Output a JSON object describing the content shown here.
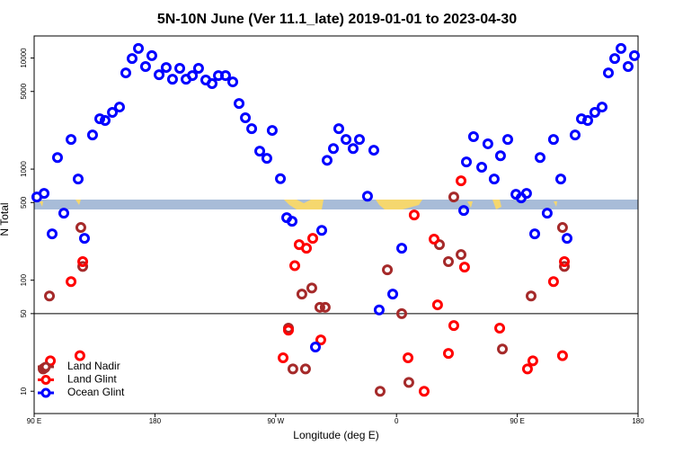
{
  "chart_data": {
    "type": "scatter",
    "title": "5N-10N June (Ver 11.1_late)   2019-01-01 to 2023-04-30",
    "x_label": "Longitude (deg E)",
    "y_label": "N Total",
    "xlim": [
      90,
      540
    ],
    "xticks": [
      {
        "value": 90,
        "label": "90 E"
      },
      {
        "value": 180,
        "label": "180"
      },
      {
        "value": 270,
        "label": "90 W"
      },
      {
        "value": 360,
        "label": "0"
      },
      {
        "value": 450,
        "label": "90 E"
      },
      {
        "value": 540,
        "label": "180"
      }
    ],
    "ylim": [
      6.3,
      15800
    ],
    "yscale": "log",
    "yticks": [
      10,
      50,
      100,
      500,
      1000,
      5000,
      10000
    ],
    "hline": 50,
    "legend": "lower left",
    "series": [
      {
        "name": "Land Nadir",
        "color": "#a52a2a",
        "x": [
          96.7,
          98,
          101.4,
          124.8,
          126.2,
          279.5,
          289.5,
          296.9,
          302.9,
          306.9,
          282.8,
          292.2,
          347.8,
          353.2,
          363.9,
          369.2,
          392.0,
          398.7,
          402.7,
          408.1,
          438.9,
          460.3,
          483.7,
          485.1
        ],
        "values": [
          15.9,
          16.3,
          72,
          298,
          133,
          37,
          75,
          85,
          57,
          57,
          15.9,
          15.9,
          10,
          124,
          50,
          12,
          209,
          147,
          561,
          170,
          24,
          72,
          298,
          133
        ]
      },
      {
        "name": "Land Glint",
        "color": "#ff0000",
        "x": [
          117.5,
          126.2,
          102.1,
          124.1,
          284.2,
          287.5,
          292.9,
          297.6,
          279.5,
          275.5,
          303.6,
          373.2,
          368.6,
          380.6,
          388.0,
          390.6,
          398.7,
          402.7,
          408.1,
          410.7,
          436.9,
          457.6,
          461.6,
          477.0,
          485.1,
          483.7
        ],
        "values": [
          97,
          147,
          18.8,
          20.9,
          135,
          209,
          194,
          238,
          35.5,
          20,
          29,
          386,
          20,
          10,
          234,
          60,
          21.9,
          39,
          785,
          131,
          37,
          15.9,
          18.8,
          97,
          147,
          20.9
        ]
      },
      {
        "name": "Ocean Glint",
        "color": "#0000ff",
        "x": [
          92.0,
          97.4,
          103.4,
          107.4,
          112.1,
          117.5,
          122.8,
          127.5,
          133.5,
          138.9,
          142.9,
          148.3,
          153.6,
          158.3,
          163.0,
          167.7,
          173.0,
          177.7,
          183.1,
          188.4,
          193.1,
          198.5,
          203.2,
          207.9,
          212.5,
          217.9,
          222.6,
          227.3,
          232.6,
          238.0,
          242.7,
          247.4,
          252.1,
          258.1,
          263.4,
          267.4,
          273.5,
          278.2,
          282.2,
          299.6,
          304.3,
          308.3,
          313.0,
          317.0,
          322.4,
          327.7,
          332.4,
          338.4,
          343.1,
          347.1,
          357.2,
          363.9,
          410.1,
          412.1,
          417.4,
          423.5,
          428.1,
          432.8,
          437.5,
          442.9,
          449.0,
          452.9,
          456.9,
          463.0,
          467.0,
          472.3,
          477.0,
          482.4,
          487.1,
          493.1,
          497.8,
          502.5,
          507.8,
          513.2,
          517.9,
          522.6,
          527.3,
          532.6,
          537.3
        ],
        "values": [
          561,
          604,
          261,
          1270,
          401,
          1850,
          815,
          238,
          2030,
          2840,
          2740,
          3240,
          3620,
          7350,
          9900,
          12200,
          8380,
          10500,
          7080,
          8220,
          6450,
          8070,
          6450,
          6950,
          8070,
          6340,
          5880,
          6950,
          6950,
          6100,
          3900,
          2900,
          2310,
          1450,
          1250,
          2230,
          820,
          365,
          339,
          25,
          281,
          1200,
          1530,
          2310,
          1850,
          1530,
          1850,
          570,
          1480,
          54,
          75,
          194,
          424,
          1160,
          1960,
          1040,
          1690,
          815,
          1320,
          1850,
          593,
          551,
          604,
          261,
          1270,
          401,
          1850,
          815,
          238,
          2030,
          2840,
          2740,
          3240,
          3620,
          7350,
          9900,
          12200,
          8380,
          10500
        ]
      }
    ]
  }
}
